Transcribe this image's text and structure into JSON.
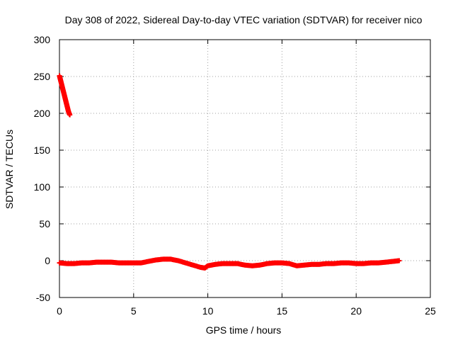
{
  "chart_data": {
    "type": "scatter",
    "title": "Day 308 of 2022, Sidereal Day-to-day VTEC variation (SDTVAR) for receiver nico",
    "xlabel": "GPS time / hours",
    "ylabel": "SDTVAR / TECUs",
    "xlim": [
      0,
      25
    ],
    "ylim": [
      -50,
      300
    ],
    "xticks": [
      "0",
      "5",
      "10",
      "15",
      "20",
      "25"
    ],
    "yticks": [
      "-50",
      "0",
      "50",
      "100",
      "150",
      "200",
      "250",
      "300"
    ],
    "grid": true,
    "legend": "none",
    "marker": "plus",
    "color": "#ff0000",
    "series": [
      {
        "x": [
          0.0,
          0.05,
          0.1,
          0.15,
          0.2,
          0.25,
          0.3,
          0.35,
          0.4,
          0.45,
          0.5,
          0.55,
          0.6,
          0.65,
          0.7
        ],
        "y": [
          251,
          247,
          243,
          239,
          235,
          231,
          227,
          223,
          219,
          215,
          211,
          207,
          203,
          200,
          198
        ]
      },
      {
        "x": [
          0.0,
          0.5,
          1.0,
          1.5,
          2.0,
          2.5,
          3.0,
          3.5,
          4.0,
          4.5,
          5.0,
          5.5,
          6.0,
          6.5,
          7.0,
          7.5,
          8.0,
          8.5,
          9.0,
          9.5,
          9.8,
          10.0,
          10.5,
          11.0,
          11.5,
          12.0,
          12.5,
          13.0,
          13.5,
          14.0,
          14.5,
          15.0,
          15.5,
          16.0,
          16.5,
          17.0,
          17.5,
          18.0,
          18.5,
          19.0,
          19.5,
          20.0,
          20.5,
          21.0,
          21.5,
          22.0,
          22.5,
          22.9
        ],
        "y": [
          -3,
          -4,
          -4,
          -3,
          -3,
          -2,
          -2,
          -2,
          -3,
          -3,
          -3,
          -3,
          -1,
          1,
          2,
          2,
          0,
          -3,
          -6,
          -9,
          -10,
          -7,
          -5,
          -4,
          -4,
          -4,
          -6,
          -7,
          -6,
          -4,
          -3,
          -3,
          -4,
          -7,
          -6,
          -5,
          -5,
          -4,
          -4,
          -3,
          -3,
          -4,
          -4,
          -3,
          -3,
          -2,
          -1,
          0
        ]
      }
    ]
  }
}
